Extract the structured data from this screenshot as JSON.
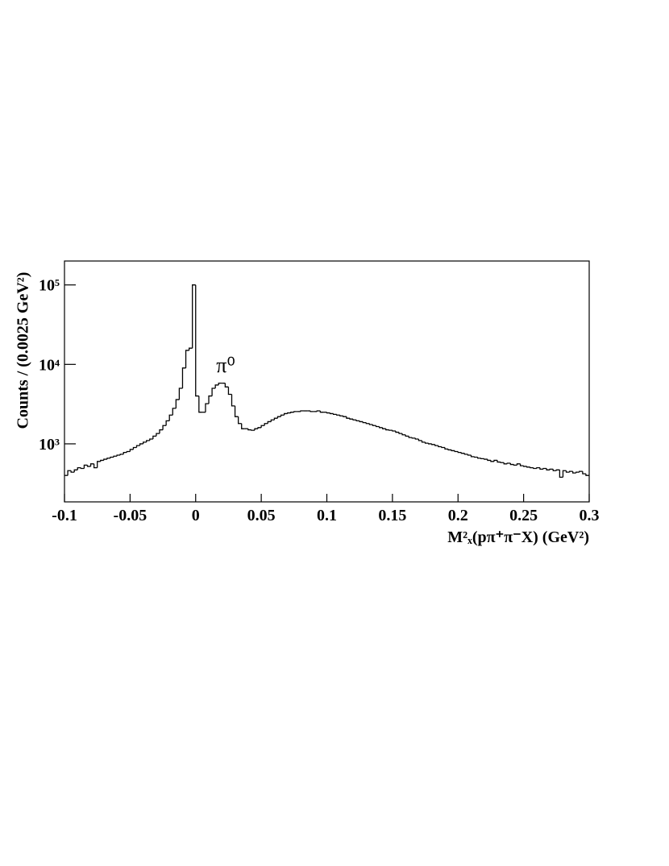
{
  "chart_data": {
    "type": "histogram",
    "ylabel": "Counts / (0.0025 GeV²)",
    "xlabel": "M²ₓ(pπ⁺π⁻X) (GeV²)",
    "annotation": "π⁰",
    "log_y": true,
    "color": "#000000",
    "xlim": [
      -0.1,
      0.3
    ],
    "xticks": [
      -0.1,
      -0.05,
      0,
      0.05,
      0.1,
      0.15,
      0.2,
      0.25,
      0.3
    ],
    "ylim": [
      186,
      200000
    ],
    "yticks": [
      {
        "value": 1000,
        "label": "10³"
      },
      {
        "value": 10000,
        "label": "10⁴"
      },
      {
        "value": 100000,
        "label": "10⁵"
      }
    ],
    "bins": [
      -0.1,
      -0.0975,
      -0.095,
      -0.0925,
      -0.09,
      -0.0875,
      -0.085,
      -0.0825,
      -0.08,
      -0.0775,
      -0.075,
      -0.0725,
      -0.07,
      -0.0675,
      -0.065,
      -0.0625,
      -0.06,
      -0.0575,
      -0.055,
      -0.0525,
      -0.05,
      -0.0475,
      -0.045,
      -0.0425,
      -0.04,
      -0.0375,
      -0.035,
      -0.0325,
      -0.03,
      -0.0275,
      -0.025,
      -0.0225,
      -0.02,
      -0.0175,
      -0.015,
      -0.0125,
      -0.01,
      -0.0075,
      -0.005,
      -0.0025,
      0,
      0.0025,
      0.005,
      0.0075,
      0.01,
      0.0125,
      0.015,
      0.0175,
      0.02,
      0.0225,
      0.025,
      0.0275,
      0.03,
      0.0325,
      0.035,
      0.0375,
      0.04,
      0.0425,
      0.045,
      0.0475,
      0.05,
      0.0525,
      0.055,
      0.0575,
      0.06,
      0.0625,
      0.065,
      0.0675,
      0.07,
      0.0725,
      0.075,
      0.0775,
      0.08,
      0.0825,
      0.085,
      0.0875,
      0.09,
      0.0925,
      0.095,
      0.0975,
      0.1,
      0.1025,
      0.105,
      0.1075,
      0.11,
      0.1125,
      0.115,
      0.1175,
      0.12,
      0.1225,
      0.125,
      0.1275,
      0.13,
      0.1325,
      0.135,
      0.1375,
      0.14,
      0.1425,
      0.145,
      0.1475,
      0.15,
      0.1525,
      0.155,
      0.1575,
      0.16,
      0.1625,
      0.165,
      0.1675,
      0.17,
      0.1725,
      0.175,
      0.1775,
      0.18,
      0.1825,
      0.185,
      0.1875,
      0.19,
      0.1925,
      0.195,
      0.1975,
      0.2,
      0.2025,
      0.205,
      0.2075,
      0.21,
      0.2125,
      0.215,
      0.2175,
      0.22,
      0.2225,
      0.225,
      0.2275,
      0.23,
      0.2325,
      0.235,
      0.2375,
      0.24,
      0.2425,
      0.245,
      0.2475,
      0.25,
      0.2525,
      0.255,
      0.2575,
      0.26,
      0.2625,
      0.265,
      0.2675,
      0.27,
      0.2725,
      0.275,
      0.2775,
      0.28,
      0.2825,
      0.285,
      0.2875,
      0.29,
      0.2925,
      0.295,
      0.2975,
      0.3
    ],
    "values": [
      400,
      460,
      440,
      470,
      500,
      490,
      540,
      520,
      560,
      500,
      600,
      620,
      640,
      660,
      680,
      700,
      720,
      740,
      780,
      800,
      850,
      900,
      950,
      1000,
      1050,
      1100,
      1150,
      1250,
      1350,
      1500,
      1700,
      1950,
      2300,
      2800,
      3600,
      5000,
      9000,
      15000,
      16000,
      100000,
      4000,
      2500,
      2500,
      3200,
      4000,
      5000,
      5500,
      5800,
      5800,
      5200,
      4200,
      3000,
      2200,
      1800,
      1550,
      1550,
      1500,
      1480,
      1550,
      1600,
      1700,
      1800,
      1900,
      2000,
      2100,
      2200,
      2300,
      2400,
      2450,
      2500,
      2550,
      2550,
      2600,
      2600,
      2600,
      2550,
      2550,
      2600,
      2500,
      2500,
      2450,
      2400,
      2350,
      2300,
      2250,
      2200,
      2100,
      2050,
      2000,
      1950,
      1900,
      1850,
      1800,
      1750,
      1700,
      1650,
      1600,
      1550,
      1500,
      1480,
      1450,
      1400,
      1350,
      1300,
      1250,
      1200,
      1180,
      1150,
      1100,
      1050,
      1020,
      1000,
      980,
      950,
      920,
      900,
      860,
      840,
      820,
      800,
      780,
      760,
      740,
      720,
      690,
      680,
      660,
      650,
      640,
      620,
      600,
      620,
      590,
      580,
      560,
      570,
      550,
      540,
      560,
      530,
      520,
      510,
      500,
      490,
      500,
      480,
      490,
      470,
      480,
      460,
      470,
      380,
      460,
      440,
      450,
      430,
      440,
      450,
      420,
      400
    ]
  }
}
